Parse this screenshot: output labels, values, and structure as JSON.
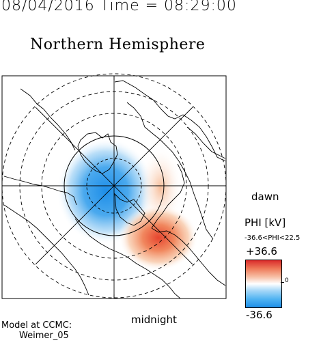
{
  "header": {
    "datetime": "08/04/2016 Time = 08:29:00",
    "title": "Northern Hemisphere"
  },
  "map": {
    "dawn_label": "dawn",
    "midnight_label": "midnight",
    "potential_min_kv": -36.6,
    "potential_max_kv": 22.5
  },
  "colorbar": {
    "label": "PHI [kV]",
    "range_text": "-36.6<PHI<22.5",
    "max_label": "+36.6",
    "zero_label": "0",
    "min_label": "-36.6",
    "colors": {
      "positive": "#d92b2b",
      "neutral": "#ffffff",
      "negative": "#1e8ee8"
    }
  },
  "credit": {
    "line1": "Model at CCMC:",
    "line2": "Weimer_05"
  }
}
